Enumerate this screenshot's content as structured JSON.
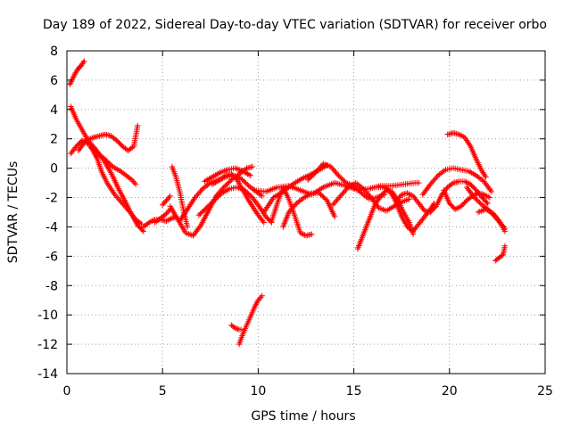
{
  "chart_data": {
    "type": "scatter",
    "title": "Day 189 of 2022, Sidereal Day-to-day VTEC variation (SDTVAR) for receiver orbo",
    "xlabel": "GPS time / hours",
    "ylabel": "SDTVAR / TECUs",
    "xlim": [
      0,
      25
    ],
    "ylim": [
      -14,
      8
    ],
    "xticks": [
      0,
      5,
      10,
      15,
      20,
      25
    ],
    "yticks": [
      -14,
      -12,
      -10,
      -8,
      -6,
      -4,
      -2,
      0,
      2,
      4,
      6,
      8
    ],
    "grid": true,
    "marker": "+",
    "color": "#ff0000",
    "series": [
      {
        "name": "s1",
        "x": [
          0.15,
          0.3,
          0.45,
          0.6,
          0.75,
          0.9
        ],
        "y": [
          5.7,
          6.1,
          6.5,
          6.8,
          7.0,
          7.3
        ]
      },
      {
        "name": "s2",
        "x": [
          0.2,
          0.5,
          0.8,
          1.1,
          1.5,
          1.9,
          2.3,
          2.7,
          3.1,
          3.4,
          3.7,
          4.0
        ],
        "y": [
          4.2,
          3.3,
          2.6,
          1.9,
          1.3,
          0.6,
          -0.3,
          -1.4,
          -2.4,
          -3.2,
          -3.9,
          -4.3
        ]
      },
      {
        "name": "s3",
        "x": [
          0.2,
          0.5,
          0.8,
          1.2,
          1.6,
          1.8,
          2.1,
          2.5,
          2.9,
          3.3,
          3.6,
          3.9
        ],
        "y": [
          1.0,
          1.5,
          1.9,
          1.6,
          0.6,
          -0.2,
          -1.0,
          -1.8,
          -2.4,
          -3.0,
          -3.5,
          -3.8
        ]
      },
      {
        "name": "s4",
        "x": [
          0.6,
          1.0,
          1.4,
          1.7,
          2.0,
          2.3,
          2.6,
          2.9,
          3.2,
          3.5,
          3.7
        ],
        "y": [
          1.2,
          1.9,
          2.1,
          2.2,
          2.3,
          2.2,
          1.9,
          1.5,
          1.2,
          1.5,
          2.9
        ]
      },
      {
        "name": "s5",
        "x": [
          1.2,
          1.6,
          2.0,
          2.4,
          2.8,
          3.1,
          3.4,
          3.6
        ],
        "y": [
          1.5,
          1.0,
          0.6,
          0.1,
          -0.2,
          -0.5,
          -0.8,
          -1.1
        ]
      },
      {
        "name": "s6",
        "x": [
          4.0,
          4.3,
          4.6,
          4.9,
          5.2,
          5.5,
          5.7
        ],
        "y": [
          -4.0,
          -3.7,
          -3.5,
          -3.5,
          -3.6,
          -3.4,
          -3.3
        ]
      },
      {
        "name": "s7",
        "x": [
          4.6,
          4.9,
          5.2,
          5.4
        ],
        "y": [
          -3.7,
          -3.4,
          -3.1,
          -2.8
        ]
      },
      {
        "name": "s8",
        "x": [
          5.0,
          5.2,
          5.4
        ],
        "y": [
          -2.5,
          -2.2,
          -1.9
        ]
      },
      {
        "name": "s9",
        "x": [
          5.4,
          5.8,
          6.2,
          6.6,
          7.0,
          7.4,
          7.8,
          8.2,
          8.6,
          9.0,
          9.4,
          9.7
        ],
        "y": [
          -2.6,
          -3.5,
          -4.4,
          -4.6,
          -3.9,
          -2.9,
          -1.9,
          -1.3,
          -0.8,
          -0.4,
          0.0,
          0.1
        ]
      },
      {
        "name": "s10",
        "x": [
          5.5,
          5.7,
          5.9,
          6.1,
          6.3
        ],
        "y": [
          0.1,
          -0.6,
          -1.6,
          -2.9,
          -4.0
        ]
      },
      {
        "name": "s11",
        "x": [
          5.9,
          6.3,
          6.7,
          7.1,
          7.5,
          7.9,
          8.3,
          8.7,
          9.1,
          9.5,
          9.9,
          10.2
        ],
        "y": [
          -3.6,
          -2.8,
          -2.0,
          -1.4,
          -1.0,
          -0.8,
          -0.6,
          -0.5,
          -0.7,
          -1.2,
          -1.6,
          -1.9
        ]
      },
      {
        "name": "s12",
        "x": [
          6.9,
          7.3,
          7.7,
          8.1,
          8.5,
          8.9,
          9.3,
          9.7,
          10.1,
          10.4,
          10.7
        ],
        "y": [
          -3.2,
          -2.7,
          -2.2,
          -1.7,
          -1.4,
          -1.3,
          -1.5,
          -2.0,
          -2.7,
          -3.3,
          -3.7
        ]
      },
      {
        "name": "s13",
        "x": [
          7.2,
          7.6,
          8.0,
          8.4,
          8.8,
          9.2,
          9.6
        ],
        "y": [
          -0.9,
          -0.6,
          -0.3,
          -0.1,
          0.0,
          -0.2,
          -0.5
        ]
      },
      {
        "name": "s14",
        "x": [
          7.6,
          8.0,
          8.3,
          8.6,
          8.9,
          9.2,
          9.5,
          9.8,
          10.0,
          10.3
        ],
        "y": [
          -1.1,
          -0.8,
          -0.5,
          -0.4,
          -0.8,
          -1.5,
          -2.2,
          -2.8,
          -3.2,
          -3.7
        ]
      },
      {
        "name": "s15",
        "x": [
          8.6,
          8.8,
          9.0,
          9.1
        ],
        "y": [
          -10.7,
          -10.9,
          -11.0,
          -11.0
        ]
      },
      {
        "name": "s16",
        "x": [
          9.0,
          9.2,
          9.4,
          9.6,
          9.8,
          10.0,
          10.2
        ],
        "y": [
          -12.0,
          -11.3,
          -10.7,
          -10.1,
          -9.5,
          -9.0,
          -8.7
        ]
      },
      {
        "name": "s17",
        "x": [
          9.8,
          10.4,
          11.0,
          11.6,
          12.2,
          12.8,
          13.4,
          14.0,
          14.6,
          15.2,
          15.8,
          16.4,
          17.0,
          17.6,
          18.2,
          18.4
        ],
        "y": [
          -1.5,
          -1.6,
          -1.3,
          -1.2,
          -1.5,
          -1.8,
          -1.3,
          -1.0,
          -1.2,
          -1.5,
          -1.4,
          -1.2,
          -1.2,
          -1.1,
          -1.0,
          -1.0
        ]
      },
      {
        "name": "s18",
        "x": [
          10.3,
          10.8,
          11.3,
          11.8,
          12.3,
          12.8,
          13.2,
          13.6
        ],
        "y": [
          -3.0,
          -2.0,
          -1.6,
          -1.1,
          -0.7,
          -0.4,
          -0.1,
          0.2
        ]
      },
      {
        "name": "s19",
        "x": [
          10.7,
          11.0,
          11.3,
          11.6,
          11.9,
          12.2,
          12.5,
          12.8
        ],
        "y": [
          -3.6,
          -2.4,
          -1.3,
          -2.1,
          -3.2,
          -4.4,
          -4.6,
          -4.5
        ]
      },
      {
        "name": "s20",
        "x": [
          11.3,
          11.6,
          12.0,
          12.4,
          12.8,
          13.2,
          13.6,
          14.0
        ],
        "y": [
          -4.0,
          -3.0,
          -2.4,
          -2.0,
          -1.7,
          -1.7,
          -2.2,
          -3.3
        ]
      },
      {
        "name": "s21",
        "x": [
          12.6,
          13.0,
          13.4,
          13.8,
          14.2,
          14.6,
          15.0,
          15.4,
          15.8,
          16.2,
          16.6
        ],
        "y": [
          -0.8,
          -0.3,
          0.3,
          0.1,
          -0.5,
          -1.0,
          -1.2,
          -1.7,
          -2.1,
          -2.0,
          -1.8
        ]
      },
      {
        "name": "s22",
        "x": [
          13.9,
          14.3,
          14.7,
          15.1,
          15.5,
          15.9,
          16.3,
          16.7,
          17.1,
          17.5,
          17.9
        ],
        "y": [
          -2.5,
          -1.9,
          -1.3,
          -1.0,
          -1.4,
          -2.0,
          -2.7,
          -2.9,
          -2.6,
          -2.3,
          -2.1
        ]
      },
      {
        "name": "s23",
        "x": [
          15.2,
          15.5,
          15.8,
          16.1,
          16.4,
          16.7,
          17.0,
          17.3,
          17.6,
          17.9,
          18.1
        ],
        "y": [
          -5.5,
          -4.5,
          -3.5,
          -2.5,
          -1.9,
          -1.5,
          -1.6,
          -2.2,
          -3.0,
          -3.7,
          -4.5
        ]
      },
      {
        "name": "s24",
        "x": [
          16.3,
          16.6,
          16.9,
          17.2,
          17.5,
          17.8,
          18.1,
          18.4,
          18.7,
          19.0,
          19.2
        ],
        "y": [
          -1.3,
          -1.3,
          -1.6,
          -2.3,
          -3.3,
          -4.0,
          -4.3,
          -3.8,
          -3.3,
          -2.8,
          -2.4
        ]
      },
      {
        "name": "s25",
        "x": [
          17.2,
          17.5,
          17.8,
          18.1,
          18.4,
          18.7,
          19.0,
          19.3,
          19.6,
          19.9,
          20.2,
          20.5,
          20.8,
          21.1,
          21.4,
          21.7,
          22.0
        ],
        "y": [
          -2.3,
          -1.8,
          -1.7,
          -1.9,
          -2.4,
          -2.9,
          -3.0,
          -2.6,
          -1.8,
          -1.3,
          -1.0,
          -0.9,
          -0.9,
          -1.1,
          -1.5,
          -2.0,
          -2.4
        ]
      },
      {
        "name": "s26",
        "x": [
          18.6,
          19.0,
          19.4,
          19.8,
          20.2,
          20.6,
          21.0,
          21.4,
          21.8,
          22.2
        ],
        "y": [
          -1.8,
          -1.1,
          -0.5,
          -0.1,
          0.0,
          -0.1,
          -0.2,
          -0.5,
          -0.9,
          -1.6
        ]
      },
      {
        "name": "s27",
        "x": [
          19.7,
          20.0,
          20.3,
          20.6,
          20.9,
          21.2,
          21.5,
          21.8,
          22.1
        ],
        "y": [
          -1.5,
          -2.4,
          -2.8,
          -2.6,
          -2.2,
          -1.9,
          -1.7,
          -1.8,
          -2.0
        ]
      },
      {
        "name": "s28",
        "x": [
          19.9,
          20.2,
          20.5,
          20.8,
          21.1,
          21.4,
          21.7,
          21.9
        ],
        "y": [
          2.3,
          2.4,
          2.3,
          2.1,
          1.5,
          0.6,
          -0.2,
          -0.6
        ]
      },
      {
        "name": "s29",
        "x": [
          20.9,
          21.3,
          21.7,
          22.1,
          22.5,
          22.9
        ],
        "y": [
          -1.3,
          -2.0,
          -2.5,
          -2.9,
          -3.5,
          -4.1
        ]
      },
      {
        "name": "s30",
        "x": [
          21.5,
          21.9,
          22.3,
          22.6,
          22.9
        ],
        "y": [
          -3.0,
          -2.8,
          -3.1,
          -3.6,
          -4.3
        ]
      },
      {
        "name": "s31",
        "x": [
          22.4,
          22.6,
          22.8,
          22.9
        ],
        "y": [
          -6.3,
          -6.1,
          -5.9,
          -5.3
        ]
      }
    ]
  }
}
